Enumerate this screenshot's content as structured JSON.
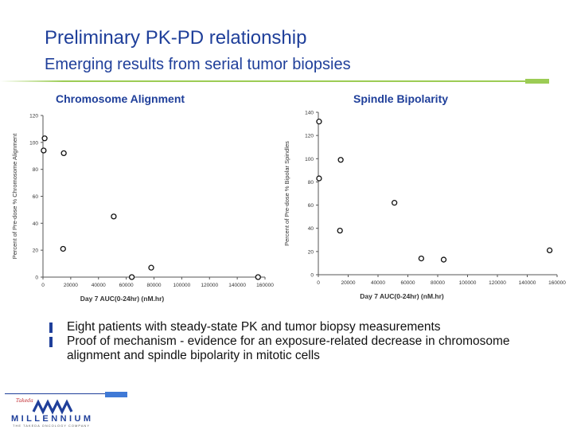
{
  "slide": {
    "title": "Preliminary PK-PD relationship",
    "subtitle": "Emerging results from serial tumor biopsies",
    "accent_color": "#1f3f9a",
    "rule_color": "#9ccc55"
  },
  "chart_data": [
    {
      "type": "scatter",
      "title": "Chromosome Alignment",
      "xlabel": "Day 7 AUC(0-24hr) (nM.hr)",
      "ylabel": "Percent of Pre-dose % Chromosome Alignment",
      "xlim": [
        0,
        160000
      ],
      "ylim": [
        0,
        120
      ],
      "xticks": [
        0,
        20000,
        40000,
        60000,
        80000,
        100000,
        120000,
        140000,
        160000
      ],
      "yticks": [
        0,
        20,
        40,
        60,
        80,
        100,
        120
      ],
      "grid": false,
      "points": [
        {
          "x": 500,
          "y": 94
        },
        {
          "x": 1200,
          "y": 103
        },
        {
          "x": 15000,
          "y": 92
        },
        {
          "x": 14500,
          "y": 21
        },
        {
          "x": 51000,
          "y": 45
        },
        {
          "x": 64000,
          "y": 0
        },
        {
          "x": 78000,
          "y": 7
        },
        {
          "x": 155000,
          "y": 0
        }
      ]
    },
    {
      "type": "scatter",
      "title": "Spindle Bipolarity",
      "xlabel": "Day 7 AUC(0-24hr) (nM.hr)",
      "ylabel": "Percent of Pre-dose % Bipolar Spindles",
      "xlim": [
        0,
        160000
      ],
      "ylim": [
        0,
        140
      ],
      "xticks": [
        0,
        20000,
        40000,
        60000,
        80000,
        100000,
        120000,
        140000,
        160000
      ],
      "yticks": [
        0,
        20,
        40,
        60,
        80,
        100,
        120,
        140
      ],
      "grid": false,
      "points": [
        {
          "x": 500,
          "y": 132
        },
        {
          "x": 500,
          "y": 83
        },
        {
          "x": 15000,
          "y": 99
        },
        {
          "x": 14500,
          "y": 38
        },
        {
          "x": 51000,
          "y": 62
        },
        {
          "x": 69000,
          "y": 14
        },
        {
          "x": 84000,
          "y": 13
        },
        {
          "x": 155000,
          "y": 21
        }
      ]
    }
  ],
  "bullets": [
    "Eight patients with steady-state PK and tumor biopsy measurements",
    "Proof of mechanism - evidence for an exposure-related decrease in chromosome alignment and spindle bipolarity in mitotic cells"
  ],
  "footer": {
    "logo_word": "MILLENNIUM",
    "logo_tagline": "THE TAKEDA ONCOLOGY COMPANY",
    "partner_mark": "Takeda"
  }
}
